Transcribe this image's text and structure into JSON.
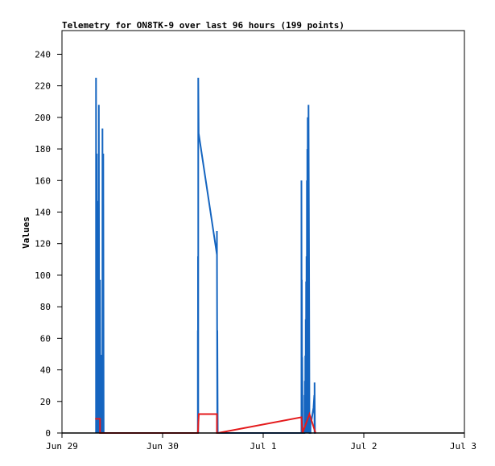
{
  "chart_data": {
    "type": "line",
    "title": "Telemetry for ON8TK-9 over last 96 hours (199 points)",
    "xlabel": "",
    "ylabel": "Values",
    "x_tick_labels": [
      "Jun 29",
      "Jun 30",
      "Jul 1",
      "Jul 2",
      "Jul 3"
    ],
    "x_range": [
      "Jun 29",
      "Jul 3"
    ],
    "y_ticks": [
      0,
      20,
      40,
      60,
      80,
      100,
      120,
      140,
      160,
      180,
      200,
      220,
      240
    ],
    "ylim": [
      0,
      255
    ],
    "grid": false,
    "legend": "none",
    "colors": {
      "blue": "#1565c0",
      "red": "#e41a1c",
      "frame": "#000000"
    },
    "series": [
      {
        "color": "#1565c0",
        "points": [
          [
            0.338,
            0
          ],
          [
            0.338,
            225
          ],
          [
            0.342,
            0
          ],
          [
            0.342,
            112
          ],
          [
            0.346,
            0
          ],
          [
            0.346,
            177
          ],
          [
            0.35,
            0
          ],
          [
            0.35,
            147
          ],
          [
            0.354,
            0
          ],
          [
            0.354,
            89
          ],
          [
            0.358,
            0
          ],
          [
            0.358,
            32
          ],
          [
            0.362,
            0
          ],
          [
            0.362,
            31
          ],
          [
            0.366,
            0
          ],
          [
            0.366,
            208
          ],
          [
            0.37,
            0
          ],
          [
            0.37,
            73
          ],
          [
            0.378,
            0
          ],
          [
            0.378,
            97
          ],
          [
            0.382,
            0
          ],
          [
            0.39,
            0
          ],
          [
            0.39,
            49
          ],
          [
            0.398,
            49
          ],
          [
            0.398,
            0
          ],
          [
            0.402,
            0
          ],
          [
            0.402,
            193
          ],
          [
            0.406,
            0
          ],
          [
            0.406,
            25
          ],
          [
            0.41,
            0
          ],
          [
            0.41,
            177
          ],
          [
            0.414,
            0
          ],
          [
            1.35,
            0
          ],
          [
            1.35,
            65
          ],
          [
            1.352,
            0
          ],
          [
            1.352,
            112
          ],
          [
            1.354,
            0
          ],
          [
            1.354,
            225
          ],
          [
            1.358,
            190
          ],
          [
            1.54,
            113
          ],
          [
            1.54,
            128
          ],
          [
            1.544,
            0
          ],
          [
            1.544,
            65
          ],
          [
            1.548,
            0
          ],
          [
            2.38,
            0
          ],
          [
            2.38,
            160
          ],
          [
            2.384,
            0
          ],
          [
            2.384,
            97
          ],
          [
            2.388,
            0
          ],
          [
            2.388,
            48
          ],
          [
            2.392,
            0
          ],
          [
            2.41,
            0
          ],
          [
            2.41,
            24
          ],
          [
            2.414,
            0
          ],
          [
            2.414,
            33
          ],
          [
            2.418,
            0
          ],
          [
            2.418,
            49
          ],
          [
            2.422,
            0
          ],
          [
            2.422,
            72
          ],
          [
            2.426,
            0
          ],
          [
            2.426,
            96
          ],
          [
            2.43,
            0
          ],
          [
            2.43,
            112
          ],
          [
            2.434,
            0
          ],
          [
            2.434,
            160
          ],
          [
            2.438,
            0
          ],
          [
            2.438,
            180
          ],
          [
            2.442,
            0
          ],
          [
            2.442,
            200
          ],
          [
            2.446,
            0
          ],
          [
            2.446,
            176
          ],
          [
            2.45,
            0
          ],
          [
            2.45,
            208
          ],
          [
            2.456,
            104
          ],
          [
            2.46,
            0
          ],
          [
            2.47,
            0
          ],
          [
            2.47,
            8
          ],
          [
            2.48,
            8
          ],
          [
            2.5,
            16
          ],
          [
            2.508,
            24
          ],
          [
            2.51,
            0
          ],
          [
            2.51,
            32
          ],
          [
            2.514,
            0
          ],
          [
            2.52,
            0
          ]
        ]
      },
      {
        "color": "#e41a1c",
        "points": [
          [
            0.33,
            9
          ],
          [
            0.346,
            9
          ],
          [
            0.362,
            9
          ],
          [
            0.378,
            9
          ],
          [
            0.378,
            0
          ],
          [
            0.414,
            0
          ],
          [
            1.33,
            0
          ],
          [
            1.35,
            0
          ],
          [
            1.36,
            12
          ],
          [
            1.54,
            12
          ],
          [
            1.54,
            0
          ],
          [
            1.55,
            0
          ],
          [
            2.38,
            10
          ],
          [
            2.39,
            0
          ],
          [
            2.46,
            12
          ],
          [
            2.52,
            0
          ]
        ]
      },
      {
        "color": "#000000",
        "points": [
          [
            0.0,
            0
          ],
          [
            4.0,
            0
          ]
        ]
      }
    ]
  }
}
